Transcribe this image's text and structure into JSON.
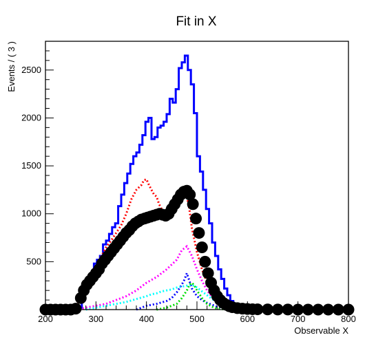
{
  "chart_data": {
    "type": "line",
    "title": "Fit in X",
    "xlabel": "Observable X",
    "ylabel": "Events / ( 3 )",
    "xlim": [
      200,
      800
    ],
    "ylim": [
      0,
      2800
    ],
    "xticks": [
      "200",
      "300",
      "400",
      "500",
      "600",
      "700",
      "800"
    ],
    "yticks": [
      "500",
      "1000",
      "1500",
      "2000",
      "2500"
    ],
    "grid": false,
    "legend": "none",
    "series": [
      {
        "color": "#0000ff",
        "style": "step",
        "x": [
          200,
          260,
          266,
          272,
          278,
          284,
          290,
          296,
          302,
          308,
          314,
          320,
          326,
          332,
          338,
          344,
          350,
          356,
          362,
          368,
          374,
          380,
          386,
          392,
          398,
          404,
          410,
          416,
          422,
          428,
          434,
          440,
          446,
          452,
          458,
          464,
          470,
          476,
          482,
          488,
          494,
          500,
          506,
          512,
          518,
          524,
          530,
          536,
          542,
          548,
          554,
          560,
          566,
          572,
          578,
          584,
          590,
          596,
          602,
          620,
          650,
          800
        ],
        "y": [
          0,
          0,
          20,
          150,
          240,
          300,
          380,
          480,
          520,
          560,
          680,
          720,
          790,
          860,
          900,
          1080,
          1200,
          1320,
          1420,
          1520,
          1600,
          1640,
          1720,
          1820,
          1960,
          2000,
          1780,
          1800,
          1900,
          1920,
          1960,
          2040,
          2200,
          2160,
          2300,
          2520,
          2580,
          2650,
          2500,
          2350,
          2050,
          1600,
          1440,
          1250,
          1050,
          900,
          700,
          560,
          420,
          320,
          220,
          150,
          90,
          60,
          40,
          30,
          20,
          15,
          10,
          5,
          0,
          0
        ]
      },
      {
        "color": "#ff0000",
        "style": "dotted",
        "x": [
          260,
          270,
          280,
          290,
          300,
          310,
          320,
          330,
          340,
          350,
          360,
          370,
          380,
          390,
          395,
          400,
          405,
          410,
          415,
          420,
          425,
          430,
          440,
          450,
          460,
          470,
          475,
          480,
          485,
          490,
          500,
          510,
          520,
          530,
          540,
          550,
          560,
          570,
          580,
          590,
          600,
          620,
          650
        ],
        "y": [
          0,
          150,
          220,
          320,
          420,
          550,
          650,
          720,
          800,
          880,
          1000,
          1150,
          1250,
          1300,
          1350,
          1360,
          1300,
          1250,
          1200,
          1180,
          1100,
          1050,
          1000,
          1100,
          1150,
          1200,
          1220,
          1180,
          1050,
          850,
          600,
          420,
          280,
          180,
          120,
          80,
          50,
          30,
          20,
          10,
          5,
          0,
          0
        ]
      },
      {
        "color": "#ff00ff",
        "style": "dotted",
        "x": [
          260,
          280,
          300,
          320,
          340,
          360,
          380,
          400,
          420,
          440,
          460,
          470,
          480,
          490,
          500,
          510,
          520,
          530,
          540,
          550,
          560,
          580,
          600,
          620
        ],
        "y": [
          0,
          20,
          40,
          60,
          100,
          140,
          200,
          280,
          340,
          420,
          520,
          620,
          660,
          560,
          420,
          300,
          200,
          130,
          80,
          50,
          30,
          10,
          5,
          0
        ]
      },
      {
        "color": "#0000ff",
        "style": "dotted",
        "x": [
          380,
          400,
          420,
          440,
          450,
          460,
          470,
          475,
          480,
          485,
          490,
          495,
          500,
          510,
          520,
          530,
          540,
          550,
          560,
          580
        ],
        "y": [
          0,
          40,
          60,
          90,
          120,
          180,
          260,
          310,
          380,
          300,
          220,
          180,
          140,
          100,
          70,
          50,
          30,
          20,
          10,
          0
        ]
      },
      {
        "color": "#00ffff",
        "style": "dotted",
        "x": [
          280,
          300,
          320,
          340,
          360,
          380,
          400,
          410,
          420,
          430,
          440,
          450,
          460,
          470,
          480,
          490,
          500,
          510,
          520,
          530,
          540,
          560,
          580,
          600
        ],
        "y": [
          0,
          20,
          40,
          60,
          80,
          110,
          140,
          160,
          170,
          190,
          200,
          210,
          230,
          240,
          250,
          260,
          230,
          190,
          150,
          110,
          80,
          40,
          20,
          0
        ]
      },
      {
        "color": "#00dd00",
        "style": "dotted",
        "x": [
          420,
          440,
          460,
          470,
          480,
          485,
          490,
          495,
          500,
          510,
          520,
          530,
          540,
          560
        ],
        "y": [
          0,
          20,
          60,
          120,
          200,
          260,
          280,
          250,
          200,
          120,
          60,
          30,
          10,
          0
        ]
      },
      {
        "color": "#000000",
        "style": "markers",
        "x": [
          200,
          210,
          220,
          230,
          240,
          250,
          260,
          270,
          276,
          282,
          288,
          294,
          300,
          306,
          312,
          318,
          324,
          330,
          336,
          342,
          348,
          354,
          360,
          366,
          372,
          378,
          384,
          390,
          396,
          402,
          408,
          414,
          420,
          426,
          432,
          438,
          444,
          450,
          456,
          462,
          468,
          474,
          480,
          486,
          492,
          498,
          504,
          510,
          516,
          522,
          528,
          534,
          540,
          546,
          552,
          558,
          564,
          570,
          580,
          590,
          600,
          610,
          620,
          640,
          660,
          680,
          700,
          720,
          740,
          760,
          780,
          800
        ],
        "y": [
          0,
          0,
          0,
          0,
          0,
          0,
          10,
          120,
          200,
          260,
          300,
          340,
          380,
          420,
          480,
          520,
          560,
          600,
          640,
          680,
          720,
          760,
          800,
          830,
          870,
          900,
          920,
          940,
          950,
          960,
          970,
          980,
          990,
          1000,
          990,
          980,
          1000,
          1050,
          1100,
          1150,
          1200,
          1230,
          1240,
          1200,
          1100,
          950,
          800,
          650,
          500,
          380,
          280,
          200,
          140,
          100,
          70,
          50,
          35,
          25,
          15,
          10,
          6,
          4,
          3,
          2,
          1,
          1,
          0,
          0,
          0,
          0,
          0,
          0
        ]
      }
    ]
  }
}
